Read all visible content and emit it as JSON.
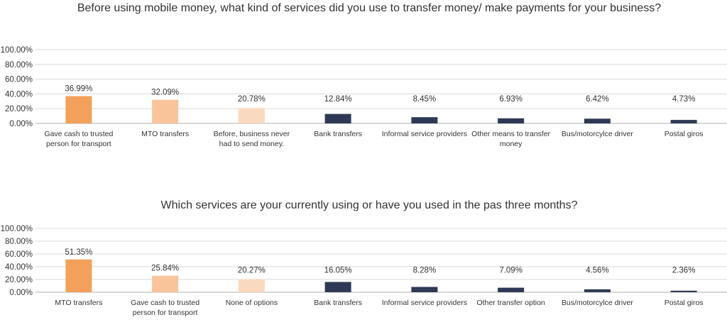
{
  "chart_data": [
    {
      "type": "bar",
      "title": "Before using mobile money, what kind of services did you use to transfer money/ make payments for your business?",
      "categories": [
        "Gave cash to trusted person for transport",
        "MTO transfers",
        "Before, business never had to send money.",
        "Bank transfers",
        "Informal service providers",
        "Other means to transfer money",
        "Bus/motorcylce driver",
        "Postal giros"
      ],
      "values": [
        36.99,
        32.09,
        20.78,
        12.84,
        8.45,
        6.93,
        6.42,
        4.73
      ],
      "data_labels": [
        "36.99%",
        "32.09%",
        "20.78%",
        "12.84%",
        "8.45%",
        "6.93%",
        "6.42%",
        "4.73%"
      ],
      "bar_colors": [
        "#F4A05A",
        "#F9C49A",
        "#FBD9BE",
        "#2E3A55",
        "#2E3A55",
        "#2E3A55",
        "#2E3A55",
        "#2E3A55"
      ],
      "yticks": [
        "0.00%",
        "20.00%",
        "40.00%",
        "60.00%",
        "80.00%",
        "100.00%"
      ],
      "ylim": [
        0,
        100
      ],
      "grid": true
    },
    {
      "type": "bar",
      "title": "Which services are your currently using or have you used in the pas three months?",
      "categories": [
        "MTO transfers",
        "Gave cash to trusted person for transport",
        "None of options",
        "Bank transfers",
        "Informal service providers",
        "Other transfer option",
        "Bus/motorcylce driver",
        "Postal giros"
      ],
      "values": [
        51.35,
        25.84,
        20.27,
        16.05,
        8.28,
        7.09,
        4.56,
        2.36
      ],
      "data_labels": [
        "51.35%",
        "25.84%",
        "20.27%",
        "16.05%",
        "8.28%",
        "7.09%",
        "4.56%",
        "2.36%"
      ],
      "bar_colors": [
        "#F4A05A",
        "#F9C49A",
        "#FBD9BE",
        "#2E3A55",
        "#2E3A55",
        "#2E3A55",
        "#2E3A55",
        "#2E3A55"
      ],
      "yticks": [
        "0.00%",
        "20.00%",
        "40.00%",
        "60.00%",
        "80.00%",
        "100.00%"
      ],
      "ylim": [
        0,
        100
      ],
      "grid": true
    }
  ]
}
